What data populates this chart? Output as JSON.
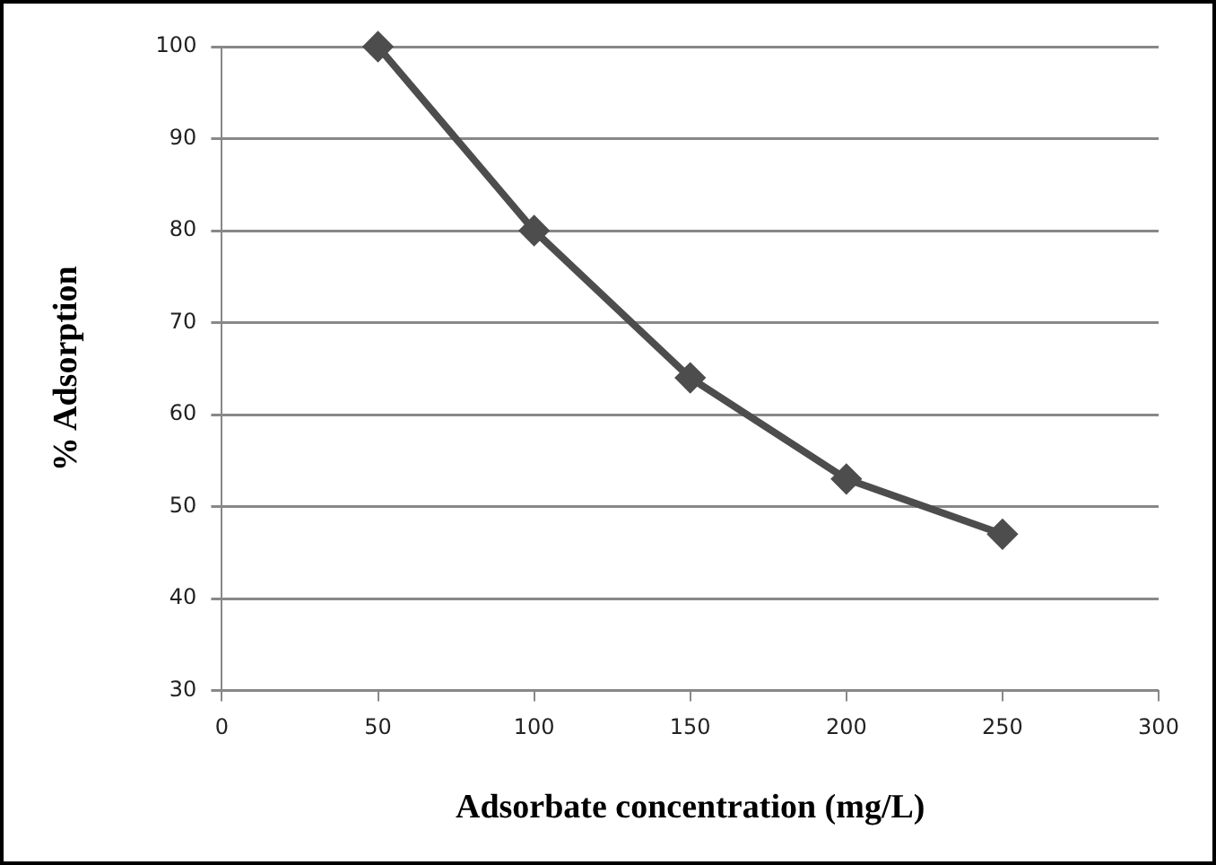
{
  "chart_data": {
    "type": "line",
    "xlabel": "Adsorbate concentration (mg/L)",
    "ylabel": "% Adsorption",
    "x": [
      50,
      100,
      150,
      200,
      250
    ],
    "series": [
      {
        "color": "#4d4d4d",
        "values": [
          100,
          80,
          64,
          53,
          47
        ]
      }
    ],
    "xlim": [
      0,
      300
    ],
    "xticks": [
      0,
      50,
      100,
      150,
      200,
      250,
      300
    ],
    "ylim": [
      30,
      100
    ],
    "yticks": [
      30,
      40,
      50,
      60,
      70,
      80,
      90,
      100
    ],
    "grid": "y",
    "legend": false,
    "marker": "diamond",
    "line_style": "solid"
  }
}
